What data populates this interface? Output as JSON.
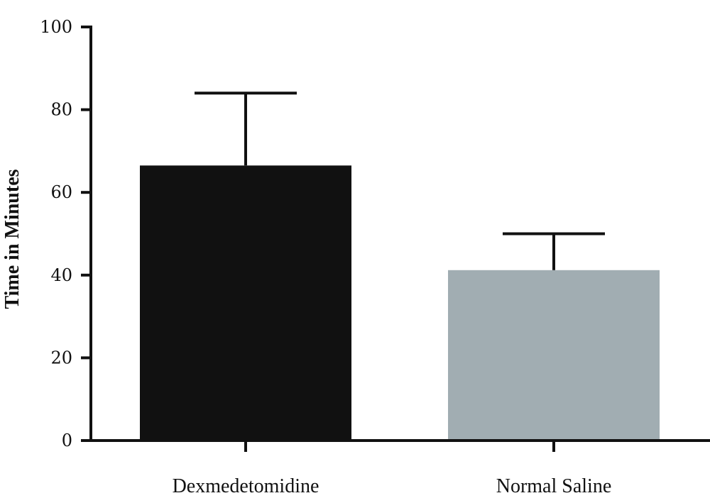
{
  "chart_data": {
    "type": "bar",
    "categories": [
      "Dexmedetomidine",
      "Normal Saline"
    ],
    "values": [
      66.5,
      41.2
    ],
    "error_upper": [
      84,
      50
    ],
    "colors": [
      "#111111",
      "#a1adb2"
    ],
    "ylabel": "Time in Minutes",
    "xlabel": "",
    "ylim": [
      0,
      100
    ],
    "yticks": [
      0,
      20,
      40,
      60,
      80,
      100
    ],
    "grid": false
  }
}
